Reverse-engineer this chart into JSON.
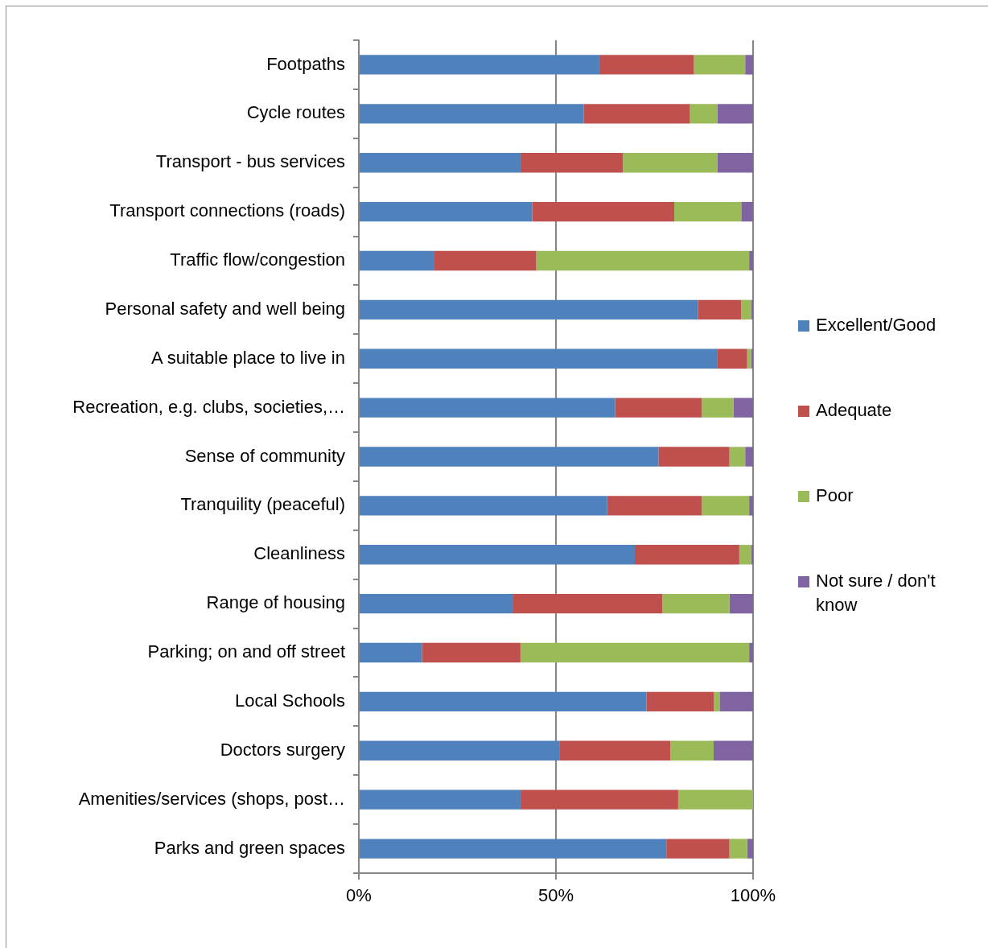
{
  "chart_data": {
    "type": "bar",
    "orientation": "horizontal",
    "stacked": true,
    "categories": [
      "Footpaths",
      "Cycle routes",
      "Transport - bus services",
      "Transport connections (roads)",
      "Traffic flow/congestion",
      "Personal safety and well being",
      "A suitable place to live in",
      "Recreation, e.g. clubs, societies,…",
      "Sense of community",
      "Tranquility (peaceful)",
      "Cleanliness",
      "Range of housing",
      "Parking; on and off street",
      "Local Schools",
      "Doctors surgery",
      "Amenities/services (shops, post…",
      "Parks and green spaces"
    ],
    "series": [
      {
        "name": "Excellent/Good",
        "color": "#4f81bd",
        "values": [
          61,
          57,
          41,
          44,
          19,
          86,
          91,
          65,
          76,
          63,
          70,
          39,
          16,
          73,
          51,
          41,
          78
        ]
      },
      {
        "name": "Adequate",
        "color": "#c0504d",
        "values": [
          24,
          27,
          26,
          36,
          26,
          11,
          7.5,
          22,
          18,
          24,
          26.5,
          38,
          25,
          17,
          28,
          40,
          16
        ]
      },
      {
        "name": "Poor",
        "color": "#9bbb59",
        "values": [
          13,
          7,
          24,
          17,
          54,
          2.5,
          1,
          8,
          4,
          12,
          3,
          17,
          58,
          1.5,
          11,
          19,
          4.5
        ]
      },
      {
        "name": "Not sure / don't know",
        "color": "#8064a2",
        "values": [
          2,
          9,
          9,
          3,
          1,
          0.5,
          0.5,
          5,
          2,
          1,
          0.5,
          6,
          1,
          8.5,
          10,
          0,
          1.5
        ]
      }
    ],
    "xlim": [
      0,
      100
    ],
    "xticks": [
      {
        "value": 0,
        "label": "0%"
      },
      {
        "value": 50,
        "label": "50%"
      },
      {
        "value": 100,
        "label": "100%"
      }
    ],
    "grid": "x",
    "legend": "right"
  }
}
